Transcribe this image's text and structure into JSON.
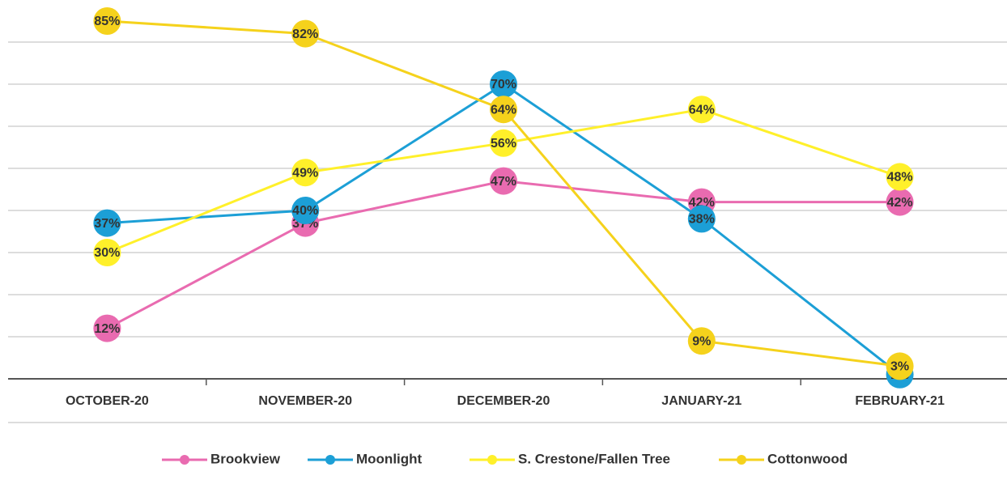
{
  "chart_data": {
    "type": "line",
    "categories": [
      "OCTOBER-20",
      "NOVEMBER-20",
      "DECEMBER-20",
      "JANUARY-21",
      "FEBRUARY-21"
    ],
    "series": [
      {
        "name": "Brookview",
        "color": "#e96bb0",
        "values": [
          12,
          37,
          47,
          42,
          42
        ],
        "value_labels": [
          "12%",
          "37%",
          "47%",
          "42%",
          "42%"
        ]
      },
      {
        "name": "Moonlight",
        "color": "#1c9fd6",
        "values": [
          37,
          40,
          70,
          38,
          1
        ],
        "value_labels": [
          "37%",
          "40%",
          "70%",
          "38%",
          "1%"
        ]
      },
      {
        "name": "S. Crestone/Fallen Tree",
        "color": "#fff02a",
        "values": [
          30,
          49,
          56,
          64,
          48
        ],
        "value_labels": [
          "30%",
          "49%",
          "56%",
          "64%",
          "48%"
        ]
      },
      {
        "name": "Cottonwood",
        "color": "#f5d21c",
        "values": [
          85,
          82,
          64,
          9,
          3
        ],
        "value_labels": [
          "85%",
          "82%",
          "64%",
          "9%",
          "3%"
        ]
      }
    ],
    "ylim": [
      0,
      90
    ],
    "yticks": [
      0,
      10,
      20,
      30,
      40,
      50,
      60,
      70,
      80
    ],
    "grid": true
  }
}
